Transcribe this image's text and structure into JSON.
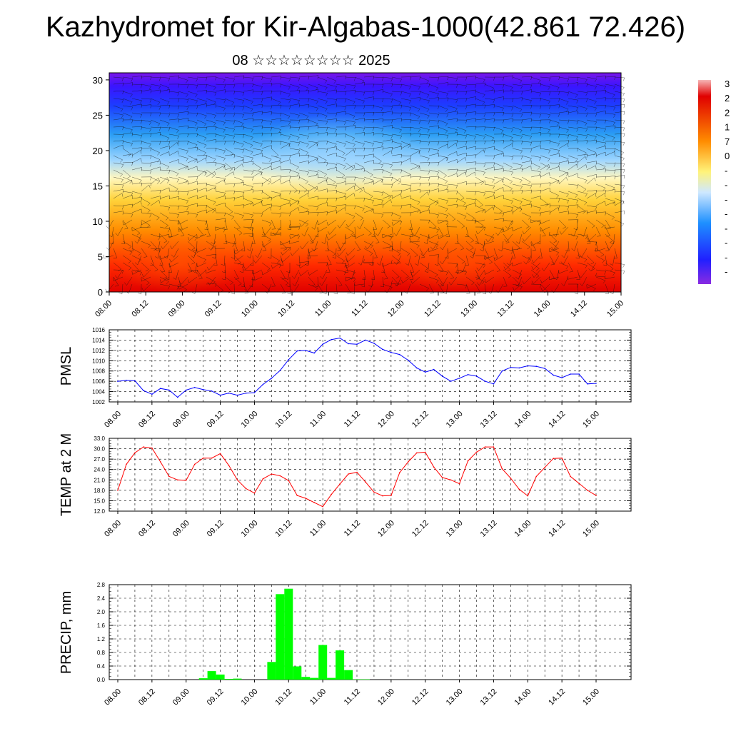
{
  "header": {
    "title": "Kazhydromet for Kir-Algabas-1000(42.861 72.426)",
    "subtitle": "08 ☆☆☆☆☆☆☆☆ 2025"
  },
  "chart_data": [
    {
      "type": "heatmap",
      "title": "",
      "xlabel": "",
      "ylabel": "",
      "ylim": [
        0,
        31
      ],
      "y_ticks": [
        "0",
        "5",
        "10",
        "15",
        "20",
        "25",
        "30"
      ],
      "x_tick_labels": [
        "08.00",
        "08.12",
        "09.00",
        "09.12",
        "10.00",
        "10.12",
        "11.00",
        "11.12",
        "12.00",
        "12.12",
        "13.00",
        "13.12",
        "14.00",
        "14.12",
        "15.00"
      ],
      "colorbar_labels": [
        "3",
        "2",
        "2",
        "1",
        "7",
        "0",
        "-",
        "-",
        "-",
        "-",
        "-",
        "-",
        "-",
        "-"
      ],
      "colors": {
        "low": "#7a17e8",
        "mid_low": "#1e90ff",
        "mid": "#ffffb0",
        "mid_high": "#ff8c00",
        "high": "#e00000"
      }
    },
    {
      "type": "line",
      "ylabel": "PMSL",
      "ylim": [
        1002,
        1016
      ],
      "y_tick_labels": [
        "1002",
        "1004",
        "1006",
        "1008",
        "1010",
        "1012",
        "1014",
        "1016"
      ],
      "x_tick_labels": [
        "08.00",
        "08.12",
        "09.00",
        "09.12",
        "10.00",
        "10.12",
        "11.00",
        "11.12",
        "12.00",
        "12.12",
        "13.00",
        "13.12",
        "14.00",
        "14.12",
        "15.00"
      ],
      "series": [
        {
          "color": "#0000ff",
          "x": [
            0,
            3,
            6,
            9,
            12,
            15,
            18,
            21,
            24,
            27,
            30,
            33,
            36,
            39,
            42,
            45,
            48,
            51,
            54,
            57,
            60,
            63,
            66,
            69,
            72,
            75,
            78,
            81,
            84,
            87,
            90,
            93,
            96,
            99,
            102,
            105,
            108,
            111,
            114,
            117,
            120,
            123,
            126,
            129,
            132,
            135,
            138,
            141,
            144,
            147,
            150,
            153,
            156,
            159,
            162,
            165,
            168
          ],
          "values": [
            1006.0,
            1006.2,
            1006.1,
            1004.2,
            1003.5,
            1004.6,
            1004.3,
            1002.9,
            1004.3,
            1004.8,
            1004.4,
            1004.1,
            1003.3,
            1003.7,
            1003.3,
            1003.7,
            1003.8,
            1005.4,
            1006.6,
            1008.1,
            1010.2,
            1011.9,
            1012.0,
            1011.5,
            1013.2,
            1014.1,
            1014.4,
            1013.3,
            1013.2,
            1014.0,
            1013.4,
            1012.2,
            1011.6,
            1011.2,
            1010.1,
            1008.6,
            1007.8,
            1008.3,
            1007.0,
            1006.0,
            1006.6,
            1007.3,
            1007.0,
            1006.0,
            1005.5,
            1008.0,
            1008.7,
            1008.6,
            1009.0,
            1008.9,
            1008.5,
            1007.2,
            1006.7,
            1007.4,
            1007.4,
            1005.5,
            1005.6
          ]
        }
      ]
    },
    {
      "type": "line",
      "ylabel": "TEMP at 2 M",
      "ylim": [
        12,
        33
      ],
      "y_tick_labels": [
        "12.0",
        "15.0",
        "18.0",
        "21.0",
        "24.0",
        "27.0",
        "30.0",
        "33.0"
      ],
      "x_tick_labels": [
        "08.00",
        "08.12",
        "09.00",
        "09.12",
        "10.00",
        "10.12",
        "11.00",
        "11.12",
        "12.00",
        "12.12",
        "13.00",
        "13.12",
        "14.00",
        "14.12",
        "15.00"
      ],
      "series": [
        {
          "color": "#ff0000",
          "x": [
            0,
            3,
            6,
            9,
            12,
            15,
            18,
            21,
            24,
            27,
            30,
            33,
            36,
            39,
            42,
            45,
            48,
            51,
            54,
            57,
            60,
            63,
            66,
            69,
            72,
            75,
            78,
            81,
            84,
            87,
            90,
            93,
            96,
            99,
            102,
            105,
            108,
            111,
            114,
            117,
            120,
            123,
            126,
            129,
            132,
            135,
            138,
            141,
            144,
            147,
            150,
            153,
            156,
            159,
            162,
            165,
            168
          ],
          "values": [
            18.0,
            25.5,
            28.8,
            30.5,
            30.2,
            26.2,
            22.0,
            21.0,
            20.9,
            25.5,
            27.3,
            27.3,
            28.6,
            25.2,
            21.0,
            18.5,
            17.2,
            21.3,
            22.7,
            22.2,
            20.8,
            16.5,
            15.7,
            14.5,
            13.3,
            16.8,
            19.8,
            22.7,
            23.2,
            20.4,
            17.5,
            16.4,
            16.5,
            23.1,
            26.2,
            28.8,
            29.0,
            24.7,
            21.7,
            21.0,
            19.9,
            26.5,
            29.0,
            30.5,
            30.5,
            24.2,
            21.5,
            18.3,
            16.4,
            22.0,
            24.6,
            27.2,
            27.3,
            22.0,
            20.0,
            18.0,
            16.5
          ]
        }
      ]
    },
    {
      "type": "bar",
      "ylabel": "PRECIP, mm",
      "ylim": [
        0,
        2.8
      ],
      "y_tick_labels": [
        "0.0",
        "0.4",
        "0.8",
        "1.2",
        "1.6",
        "2.0",
        "2.4",
        "2.8"
      ],
      "x_tick_labels": [
        "08.00",
        "08.12",
        "09.00",
        "09.12",
        "10.00",
        "10.12",
        "11.00",
        "11.12",
        "12.00",
        "12.12",
        "13.00",
        "13.12",
        "14.00",
        "14.12",
        "15.00"
      ],
      "bar_color": "#00ff00",
      "x": [
        30,
        33,
        36,
        39,
        42,
        54,
        57,
        60,
        63,
        66,
        69,
        72,
        75,
        78,
        81,
        84,
        87
      ],
      "values": [
        0.04,
        0.25,
        0.15,
        0.02,
        0.03,
        0.52,
        2.52,
        2.68,
        0.39,
        0.08,
        0.05,
        1.02,
        0.05,
        0.86,
        0.28,
        0.01,
        0.01
      ]
    }
  ]
}
